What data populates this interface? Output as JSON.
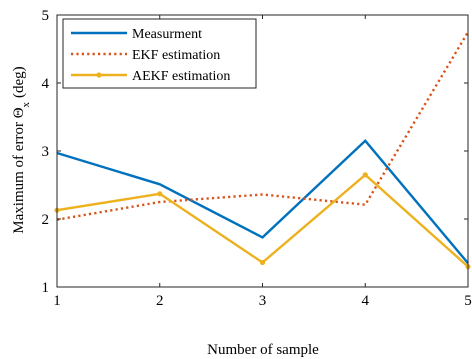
{
  "chart_data": {
    "type": "line",
    "xlabel": "Number of sample",
    "ylabel_main": "Maximum of error Θ",
    "ylabel_sub": "x",
    "ylabel_unit": "(deg)",
    "xlim": [
      1,
      5
    ],
    "ylim": [
      1,
      5
    ],
    "x": [
      1,
      2,
      3,
      4,
      5
    ],
    "x_ticks": [
      1,
      2,
      3,
      4,
      5
    ],
    "y_ticks": [
      1,
      2,
      3,
      4,
      5
    ],
    "grid": false,
    "legend_position": "top-left",
    "series": [
      {
        "name": "Measurment",
        "values": [
          2.97,
          2.51,
          1.73,
          3.15,
          1.35
        ],
        "color": "#0072BD",
        "style": "solid",
        "marker": "none"
      },
      {
        "name": "EKF estimation",
        "values": [
          1.99,
          2.25,
          2.36,
          2.21,
          4.75
        ],
        "color": "#D95319",
        "style": "dotted",
        "marker": "none"
      },
      {
        "name": "AEKF estimation",
        "values": [
          2.13,
          2.37,
          1.36,
          2.65,
          1.3
        ],
        "color": "#EDB120",
        "style": "solid",
        "marker": "dot"
      }
    ]
  }
}
